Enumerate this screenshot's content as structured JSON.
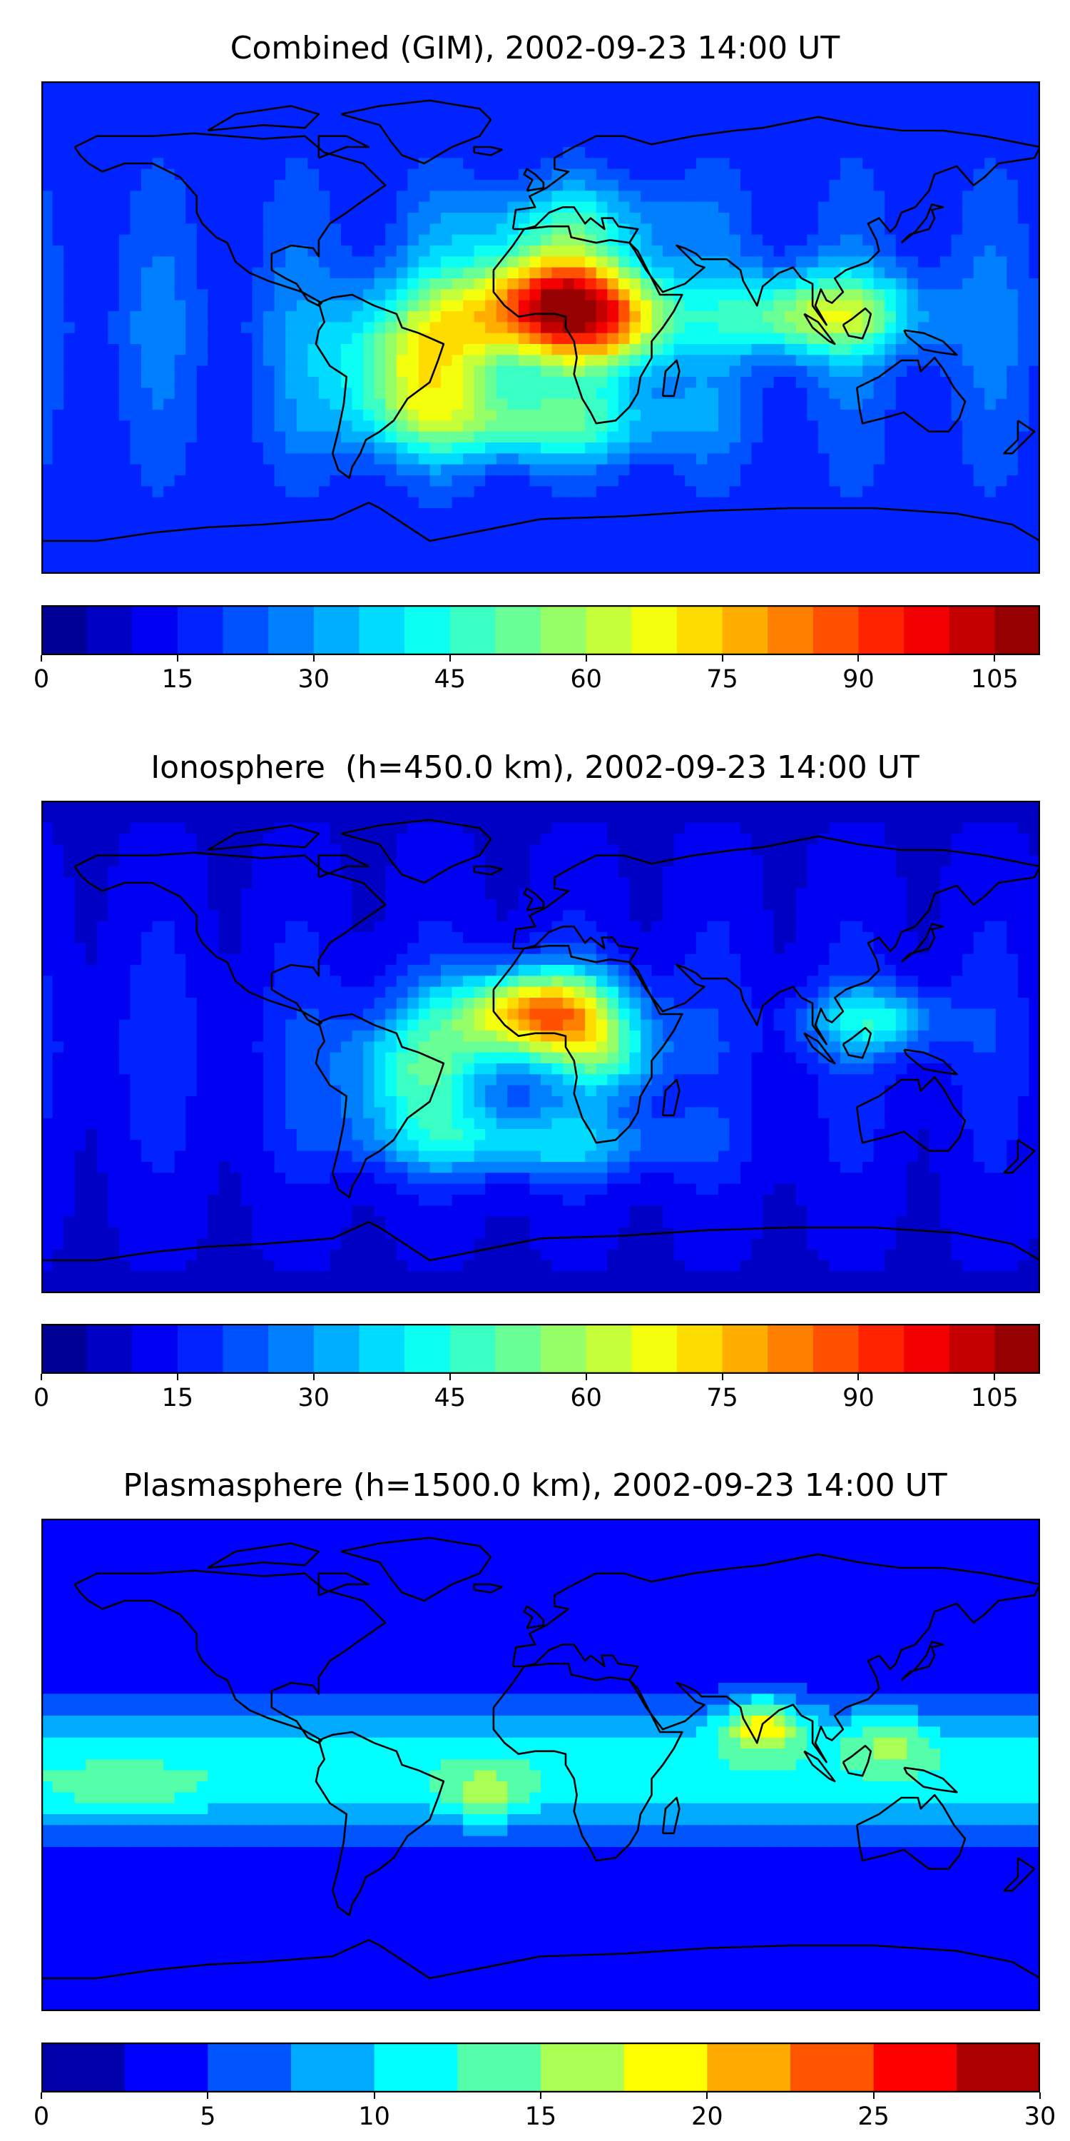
{
  "panels": [
    {
      "title": "Combined (GIM), 2002-09-23 14:00 UT",
      "colorbar": {
        "min": 0,
        "max": 110,
        "levels": 22,
        "ticks": [
          "0",
          "15",
          "30",
          "45",
          "60",
          "75",
          "90",
          "105"
        ],
        "tick_values": [
          0,
          15,
          30,
          45,
          60,
          75,
          90,
          105
        ]
      },
      "field": {
        "base": 15,
        "lat_amp": 0.3,
        "lon_ripple": 5,
        "blobs": [
          {
            "lon": 5,
            "lat": 8,
            "amp": 82,
            "slon": 32,
            "slat": 20
          },
          {
            "lon": 30,
            "lat": 0,
            "amp": 25,
            "slon": 20,
            "slat": 18
          },
          {
            "lon": -45,
            "lat": -12,
            "amp": 42,
            "slon": 30,
            "slat": 26
          },
          {
            "lon": 100,
            "lat": 5,
            "amp": 42,
            "slon": 35,
            "slat": 15
          },
          {
            "lon": -5,
            "lat": -35,
            "amp": 30,
            "slon": 55,
            "slat": 14
          },
          {
            "lon": 10,
            "lat": 40,
            "amp": 18,
            "slon": 40,
            "slat": 14
          }
        ]
      }
    },
    {
      "title": "Ionosphere  (h=450.0 km), 2002-09-23 14:00 UT",
      "colorbar": {
        "min": 0,
        "max": 110,
        "levels": 22,
        "ticks": [
          "0",
          "15",
          "30",
          "45",
          "60",
          "75",
          "90",
          "105"
        ],
        "tick_values": [
          0,
          15,
          30,
          45,
          60,
          75,
          90,
          105
        ]
      },
      "field": {
        "base": 9,
        "lat_amp": 0.25,
        "lon_ripple": 4,
        "blobs": [
          {
            "lon": 0,
            "lat": 12,
            "amp": 70,
            "slon": 30,
            "slat": 16
          },
          {
            "lon": 25,
            "lat": -5,
            "amp": 25,
            "slon": 20,
            "slat": 15
          },
          {
            "lon": -45,
            "lat": -10,
            "amp": 32,
            "slon": 28,
            "slat": 24
          },
          {
            "lon": 120,
            "lat": 10,
            "amp": 28,
            "slon": 25,
            "slat": 12
          },
          {
            "lon": -5,
            "lat": -35,
            "amp": 25,
            "slon": 55,
            "slat": 13
          }
        ]
      }
    },
    {
      "title": "Plasmasphere (h=1500.0 km), 2002-09-23 14:00 UT",
      "colorbar": {
        "min": 0,
        "max": 30,
        "levels": 12,
        "ticks": [
          "0",
          "5",
          "10",
          "15",
          "20",
          "25",
          "30"
        ],
        "tick_values": [
          0,
          5,
          10,
          15,
          20,
          25,
          30
        ]
      },
      "field": {
        "base": 3,
        "lat_amp": 0,
        "lon_ripple": 0,
        "band": {
          "amp": 9,
          "lat": -2,
          "slat": 22
        },
        "blobs": [
          {
            "lon": 80,
            "lat": 15,
            "amp": 11,
            "slon": 15,
            "slat": 10
          },
          {
            "lon": -20,
            "lat": -12,
            "amp": 6,
            "slon": 15,
            "slat": 10
          },
          {
            "lon": 125,
            "lat": 10,
            "amp": 6,
            "slon": 15,
            "slat": 10
          },
          {
            "lon": -150,
            "lat": -12,
            "amp": 3,
            "slon": 30,
            "slat": 10
          }
        ]
      }
    }
  ],
  "colors": {
    "jet": [
      "#00007f",
      "#0000ff",
      "#007fff",
      "#00ffff",
      "#7fff7f",
      "#ffff00",
      "#ff7f00",
      "#ff0000",
      "#7f0000"
    ],
    "outline": "#000000",
    "coast": "#000000"
  }
}
